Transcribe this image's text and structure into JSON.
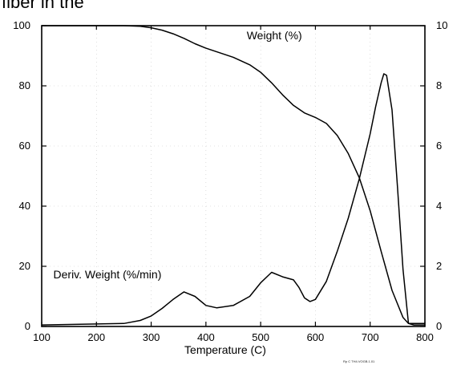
{
  "chart_data": {
    "type": "line",
    "title_fragment": "fiber in the",
    "xlabel": "Temperature  (C)",
    "x_ticks": [
      100,
      200,
      300,
      400,
      500,
      600,
      700,
      800
    ],
    "y_left_ticks": [
      0,
      20,
      40,
      60,
      80,
      100
    ],
    "y_right_ticks": [
      0,
      2,
      4,
      6,
      8,
      10
    ],
    "xlim": [
      100,
      800
    ],
    "ylim_left": [
      0,
      100
    ],
    "ylim_right": [
      0,
      10
    ],
    "footnote": "Rp C TH4.VOGB.1.01",
    "series": [
      {
        "name": "Weight (%)",
        "axis": "left",
        "x": [
          100,
          250,
          280,
          300,
          320,
          340,
          360,
          380,
          400,
          450,
          480,
          500,
          520,
          540,
          560,
          580,
          600,
          620,
          640,
          660,
          680,
          700,
          720,
          740,
          760,
          770,
          800
        ],
        "y": [
          100,
          100,
          99.8,
          99.3,
          98.5,
          97.3,
          95.8,
          94,
          92.5,
          89.5,
          87,
          84.5,
          81,
          77,
          73.5,
          71,
          69.5,
          67.5,
          63.5,
          57.5,
          49.5,
          38.5,
          25,
          12,
          3,
          1,
          1
        ]
      },
      {
        "name": "Deriv. Weight (%/min)",
        "axis": "right",
        "x": [
          100,
          250,
          280,
          300,
          320,
          340,
          360,
          380,
          400,
          420,
          450,
          480,
          500,
          520,
          540,
          560,
          570,
          580,
          590,
          600,
          620,
          640,
          660,
          680,
          700,
          710,
          720,
          725,
          730,
          740,
          750,
          760,
          770,
          780,
          800
        ],
        "y": [
          0.05,
          0.1,
          0.2,
          0.35,
          0.6,
          0.9,
          1.15,
          1,
          0.7,
          0.62,
          0.7,
          1,
          1.45,
          1.8,
          1.65,
          1.55,
          1.3,
          0.95,
          0.83,
          0.9,
          1.5,
          2.5,
          3.6,
          4.9,
          6.4,
          7.3,
          8.1,
          8.4,
          8.35,
          7.2,
          4.6,
          1.9,
          0.1,
          0.05,
          0.05
        ]
      }
    ],
    "annotations": [
      {
        "text": "Weight (%)",
        "x": 525,
        "y_left": 95.5
      },
      {
        "text": "Deriv. Weight (%/min)",
        "x": 220,
        "y_left": 16
      }
    ]
  }
}
